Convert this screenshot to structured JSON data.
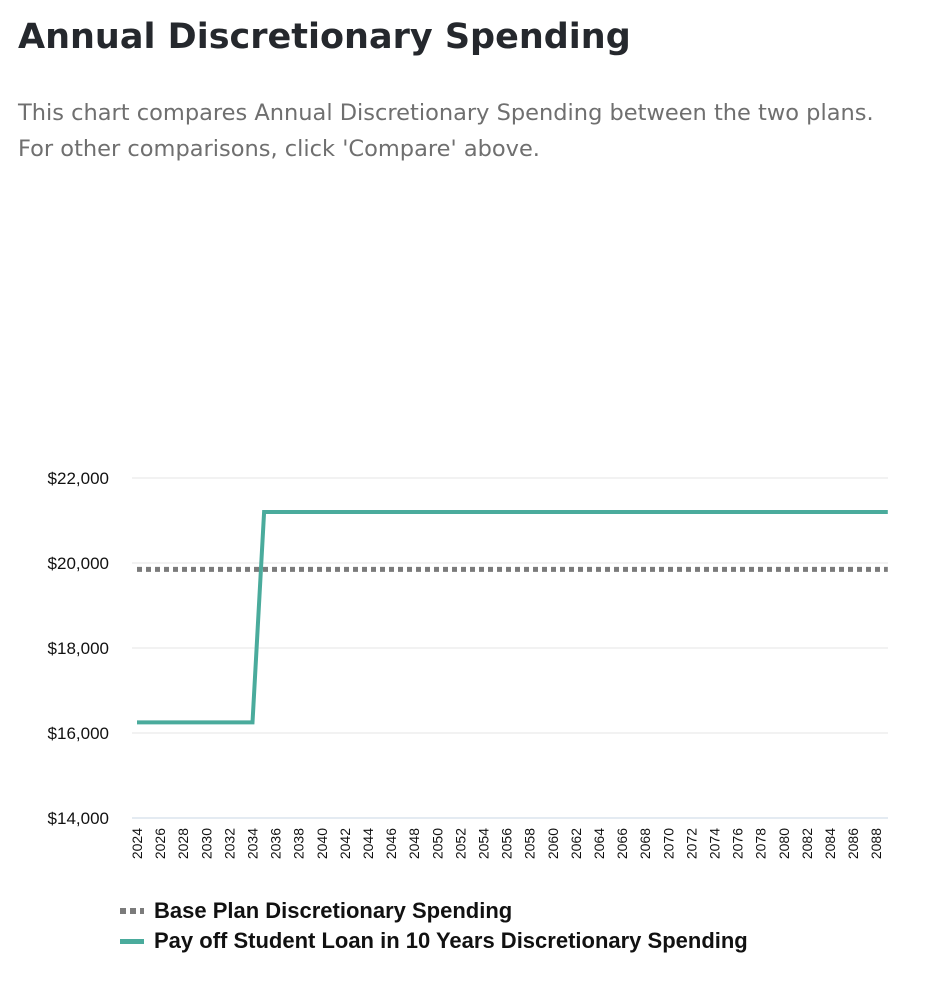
{
  "header": {
    "title": "Annual Discretionary Spending",
    "description_line1": "This chart compares Annual Discretionary Spending between the two plans.",
    "description_line2": "For other comparisons, click 'Compare' above."
  },
  "colors": {
    "base_plan": "#7b7b7b",
    "payoff_plan": "#4aab9c",
    "gridline": "#e6e6e6",
    "axis_line": "#c9d7e5"
  },
  "chart_data": {
    "type": "line",
    "title": "Annual Discretionary Spending",
    "xlabel": "",
    "ylabel": "",
    "x_range": [
      2024,
      2089
    ],
    "ylim": [
      14000,
      22000
    ],
    "y_ticks": [
      14000,
      16000,
      18000,
      20000,
      22000
    ],
    "y_tick_labels": [
      "$14,000",
      "$16,000",
      "$18,000",
      "$20,000",
      "$22,000"
    ],
    "x_tick_labels": [
      "2024",
      "2026",
      "2028",
      "2030",
      "2032",
      "2034",
      "2036",
      "2038",
      "2040",
      "2042",
      "2044",
      "2046",
      "2048",
      "2050",
      "2052",
      "2054",
      "2056",
      "2058",
      "2060",
      "2062",
      "2064",
      "2066",
      "2068",
      "2070",
      "2072",
      "2074",
      "2076",
      "2078",
      "2080",
      "2082",
      "2084",
      "2086",
      "2088"
    ],
    "series": [
      {
        "name": "Base Plan Discretionary Spending",
        "style": "dotted",
        "color": "#7b7b7b",
        "points": [
          [
            2024,
            19850
          ],
          [
            2089,
            19850
          ]
        ]
      },
      {
        "name": "Pay off Student Loan in 10 Years Discretionary Spending",
        "style": "solid",
        "color": "#4aab9c",
        "points": [
          [
            2024,
            16250
          ],
          [
            2034,
            16250
          ],
          [
            2035,
            21200
          ],
          [
            2089,
            21200
          ]
        ]
      }
    ],
    "legend": "bottom-left"
  }
}
